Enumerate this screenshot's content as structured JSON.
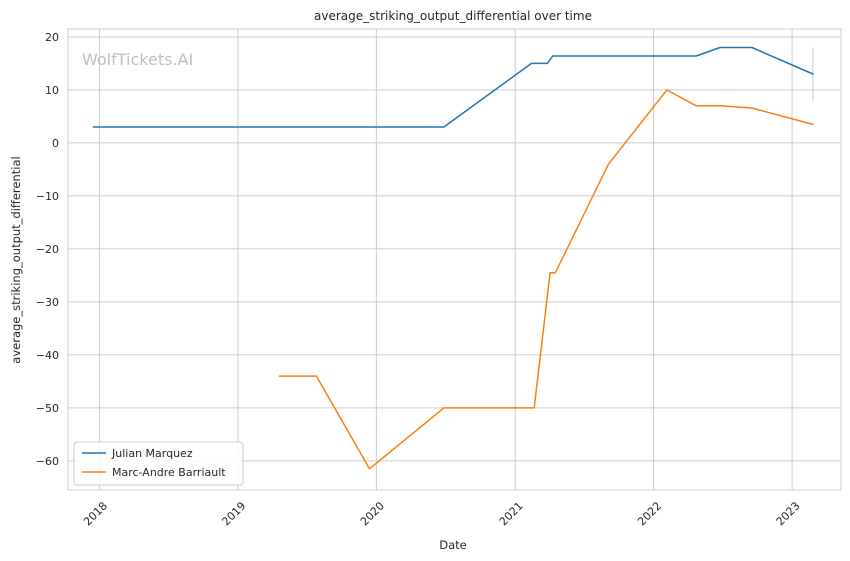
{
  "chart_data": {
    "type": "line",
    "title": "average_striking_output_differential over time",
    "xlabel": "Date",
    "ylabel": "average_striking_output_differential",
    "watermark": "WolfTickets.AI",
    "x_range": [
      "2017-10-10",
      "2023-05-10"
    ],
    "ylim": [
      -65.5,
      21.5
    ],
    "x_ticks": [
      "2018",
      "2019",
      "2020",
      "2021",
      "2022",
      "2023"
    ],
    "y_ticks": [
      20,
      10,
      0,
      -10,
      -20,
      -30,
      -40,
      -50,
      -60
    ],
    "y_tick_labels": [
      "20",
      "10",
      "0",
      "−10",
      "−20",
      "−30",
      "−40",
      "−50",
      "−60"
    ],
    "grid": true,
    "legend_placement": "lower-left",
    "series": [
      {
        "name": "Julian Marquez",
        "color": "#1f77b4",
        "points": [
          [
            "2017-12-16",
            3
          ],
          [
            "2020-06-27",
            3
          ],
          [
            "2021-02-13",
            15
          ],
          [
            "2021-03-27",
            15
          ],
          [
            "2021-04-10",
            16.4
          ],
          [
            "2022-04-23",
            16.4
          ],
          [
            "2022-06-25",
            18
          ],
          [
            "2022-09-17",
            18
          ],
          [
            "2023-02-25",
            13
          ]
        ],
        "error_bar": {
          "x": "2023-02-25",
          "low": 8,
          "high": 18
        }
      },
      {
        "name": "Marc-Andre Barriault",
        "color": "#ff7f0e",
        "points": [
          [
            "2019-04-20",
            -44
          ],
          [
            "2019-07-27",
            -44
          ],
          [
            "2019-12-14",
            -61.5
          ],
          [
            "2020-06-27",
            -50
          ],
          [
            "2021-02-20",
            -50
          ],
          [
            "2021-04-03",
            -24.5
          ],
          [
            "2021-04-17",
            -24.5
          ],
          [
            "2021-09-04",
            -4
          ],
          [
            "2022-02-05",
            10
          ],
          [
            "2022-04-23",
            7
          ],
          [
            "2022-06-25",
            7
          ],
          [
            "2022-09-17",
            6.6
          ],
          [
            "2023-02-25",
            3.5
          ]
        ]
      }
    ]
  }
}
